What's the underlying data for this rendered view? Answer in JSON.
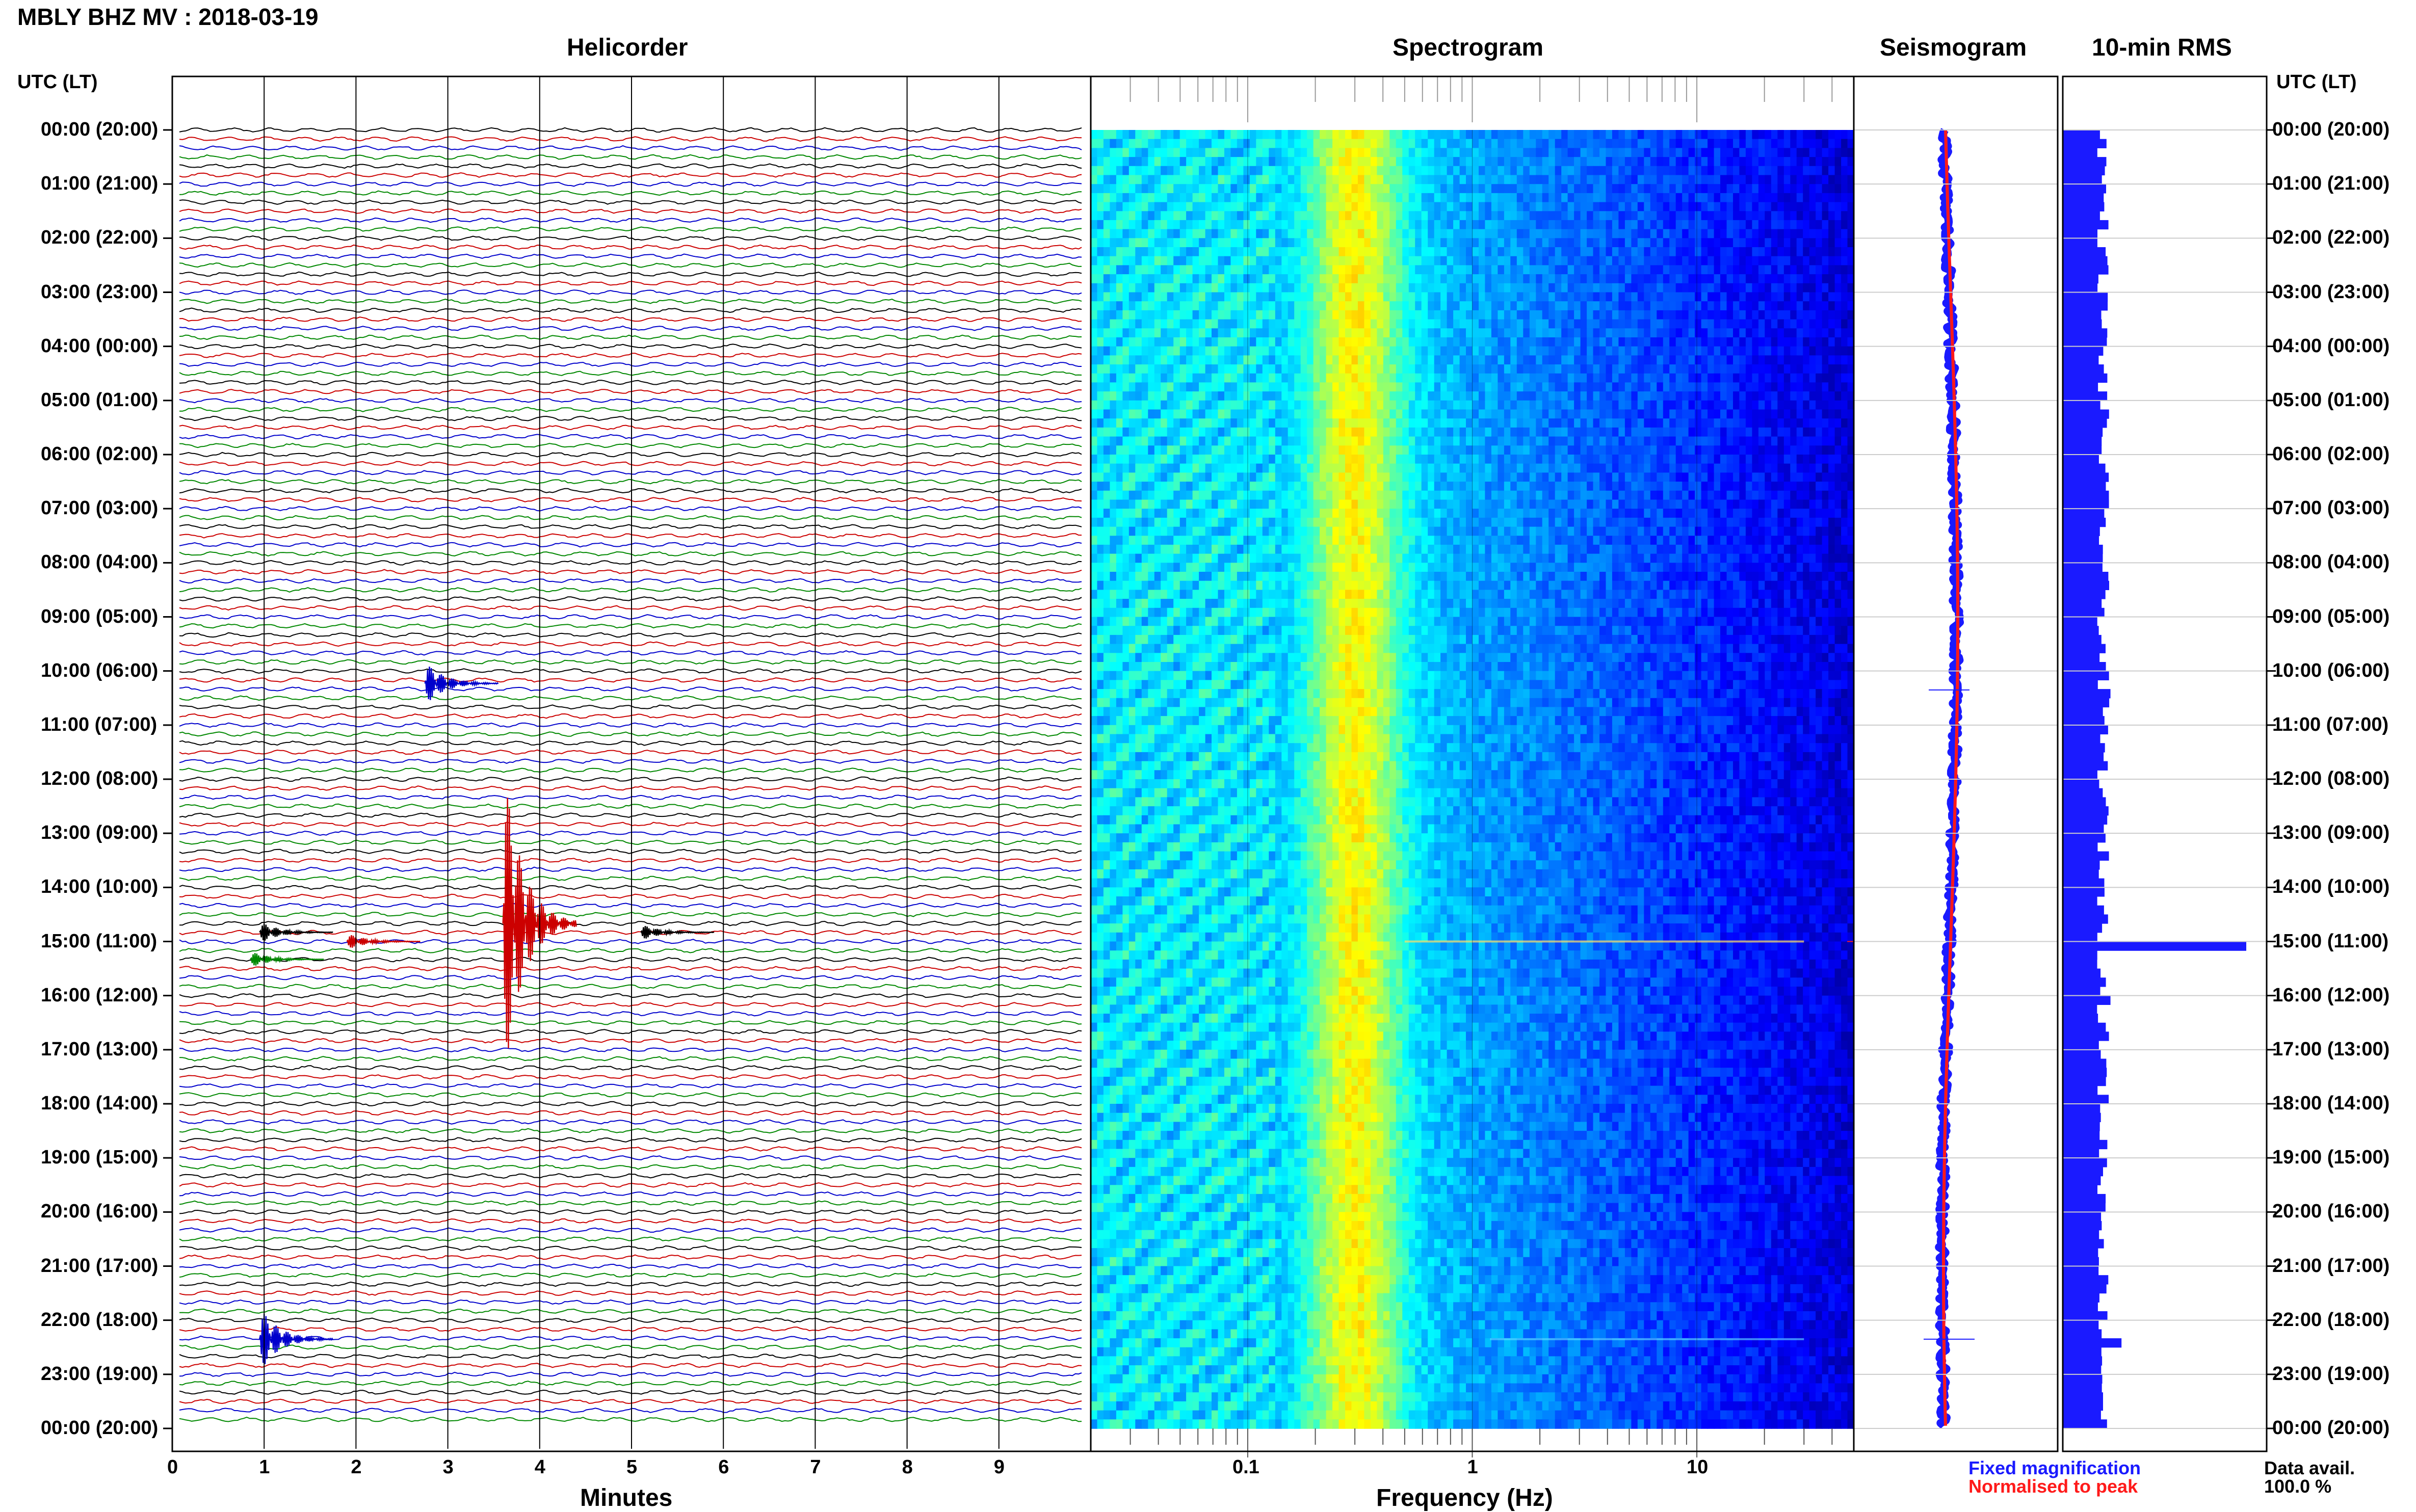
{
  "page_title": "MBLY BHZ MV : 2018-03-19",
  "utc_header": "UTC (LT)",
  "legend": {
    "fixed_magnification": "Fixed magnification",
    "normalised_to_peak": "Normalised to peak",
    "colors": {
      "fixed": "#1a1aff",
      "normalised": "#ff1a1a"
    }
  },
  "data_avail": {
    "label": "Data avail.",
    "value": "100.0 %"
  },
  "chart_data": [
    {
      "type": "line",
      "title": "Helicorder",
      "xlabel": "Minutes",
      "x_ticks": [
        "0",
        "1",
        "2",
        "3",
        "4",
        "5",
        "6",
        "7",
        "8",
        "9"
      ],
      "xlim": [
        0,
        10
      ],
      "y_time_labels": [
        "00:00 (20:00)",
        "01:00 (21:00)",
        "02:00 (22:00)",
        "03:00 (23:00)",
        "04:00 (00:00)",
        "05:00 (01:00)",
        "06:00 (02:00)",
        "07:00 (03:00)",
        "08:00 (04:00)",
        "09:00 (05:00)",
        "10:00 (06:00)",
        "11:00 (07:00)",
        "12:00 (08:00)",
        "13:00 (09:00)",
        "14:00 (10:00)",
        "15:00 (11:00)",
        "16:00 (12:00)",
        "17:00 (13:00)",
        "18:00 (14:00)",
        "19:00 (15:00)",
        "20:00 (16:00)",
        "21:00 (17:00)",
        "22:00 (18:00)",
        "23:00 (19:00)",
        "00:00 (20:00)"
      ],
      "trace_colors": [
        "#000000",
        "#cc0000",
        "#0000cc",
        "#008800"
      ],
      "events": [
        {
          "hour": 10.23,
          "minute": 2.75,
          "amplitude": 0.4,
          "color": "#0000cc"
        },
        {
          "hour": 14.67,
          "minute": 3.6,
          "amplitude": 3.0,
          "color": "#cc0000"
        },
        {
          "hour": 14.83,
          "minute": 0.95,
          "amplitude": 0.2,
          "color": "#000000"
        },
        {
          "hour": 14.83,
          "minute": 5.1,
          "amplitude": 0.15,
          "color": "#000000"
        },
        {
          "hour": 15.0,
          "minute": 1.9,
          "amplitude": 0.15,
          "color": "#cc0000"
        },
        {
          "hour": 15.33,
          "minute": 0.85,
          "amplitude": 0.15,
          "color": "#008800"
        },
        {
          "hour": 22.35,
          "minute": 0.95,
          "amplitude": 0.6,
          "color": "#0000cc"
        }
      ]
    },
    {
      "type": "heatmap",
      "title": "Spectrogram",
      "xlabel": "Frequency (Hz)",
      "x_scale": "log",
      "xlim": [
        0.02,
        50
      ],
      "x_ticks": [
        "0.1",
        "1",
        "10"
      ],
      "peak_frequency_hz": 0.3,
      "colormap": "jet"
    },
    {
      "type": "line",
      "title": "Seismogram",
      "series": [
        {
          "name": "Fixed magnification",
          "color": "#1a1aff"
        },
        {
          "name": "Normalised to peak",
          "color": "#ff1a1a"
        }
      ],
      "spikes": [
        {
          "hour": 10.35,
          "amplitude": 0.2
        },
        {
          "hour": 15.0,
          "amplitude": 1.0
        },
        {
          "hour": 22.35,
          "amplitude": 0.25
        }
      ]
    },
    {
      "type": "bar",
      "title": "10-min RMS",
      "orientation": "horizontal",
      "bars_per_hour": 6,
      "typical_value": 0.22,
      "peak": {
        "hour": 15.0,
        "value": 1.0
      },
      "secondary_peaks": [
        {
          "hour": 16.0,
          "value": 0.26
        },
        {
          "hour": 22.33,
          "value": 0.32
        },
        {
          "hour": 10.33,
          "value": 0.26
        }
      ]
    }
  ]
}
